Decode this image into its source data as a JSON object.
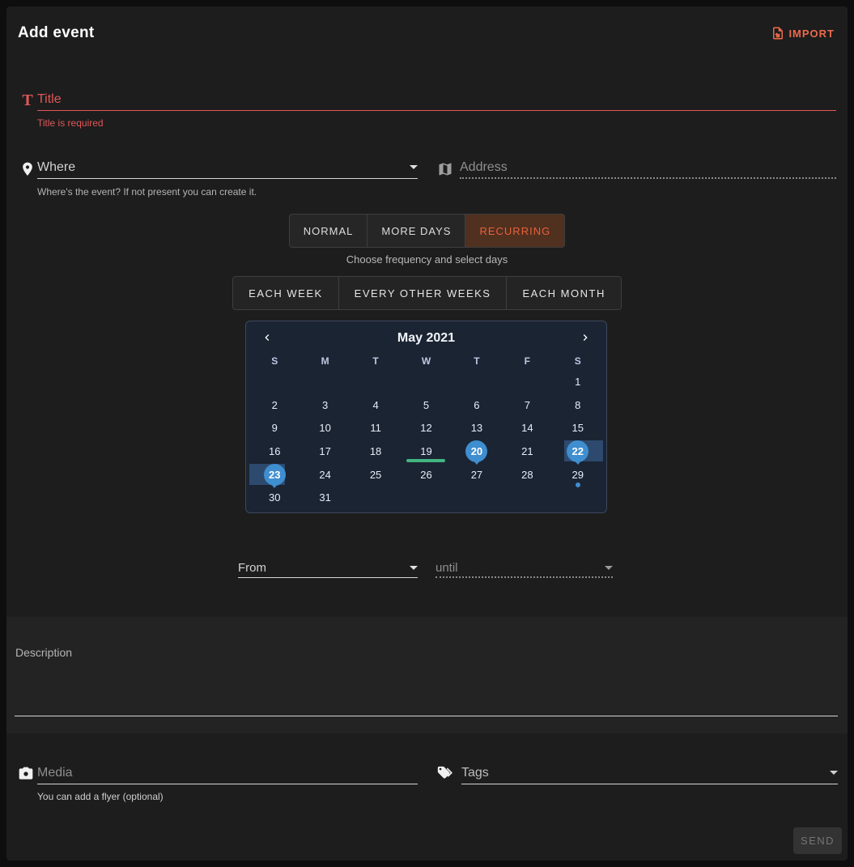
{
  "header": {
    "title": "Add event",
    "import_label": "IMPORT"
  },
  "title_field": {
    "placeholder": "Title",
    "error": "Title is required"
  },
  "where_field": {
    "placeholder": "Where",
    "helper": "Where's the event? If not present you can create it."
  },
  "address_field": {
    "placeholder": "Address"
  },
  "mode_tabs": [
    {
      "label": "NORMAL",
      "active": false
    },
    {
      "label": "MORE DAYS",
      "active": false
    },
    {
      "label": "RECURRING",
      "active": true
    }
  ],
  "frequency": {
    "hint": "Choose frequency and select days",
    "options": [
      "EACH WEEK",
      "EVERY OTHER WEEKS",
      "EACH MONTH"
    ]
  },
  "calendar": {
    "month_label": "May 2021",
    "weekdays": [
      "S",
      "M",
      "T",
      "W",
      "T",
      "F",
      "S"
    ],
    "weeks": [
      [
        "",
        "",
        "",
        "",
        "",
        "",
        "1"
      ],
      [
        "2",
        "3",
        "4",
        "5",
        "6",
        "7",
        "8"
      ],
      [
        "9",
        "10",
        "11",
        "12",
        "13",
        "14",
        "15"
      ],
      [
        "16",
        "17",
        "18",
        "19",
        "20",
        "21",
        "22"
      ],
      [
        "23",
        "24",
        "25",
        "26",
        "27",
        "28",
        "29"
      ],
      [
        "30",
        "31",
        "",
        "",
        "",
        "",
        ""
      ]
    ],
    "selected_days": [
      "20",
      "22",
      "23"
    ],
    "underlined_day": "19",
    "dot_day": "29",
    "band_right_after_day": "22",
    "band_left_before_day": "23"
  },
  "time_fields": {
    "from_label": "From",
    "until_placeholder": "until"
  },
  "description_field": {
    "label": "Description"
  },
  "media_field": {
    "placeholder": "Media",
    "helper": "You can add a flyer (optional)"
  },
  "tags_field": {
    "placeholder": "Tags"
  },
  "send_button": {
    "label": "SEND"
  },
  "theme": {
    "accent_orange": "#ec6a4a",
    "error_red": "#e25757",
    "selected_blue": "#3e8ed0",
    "range_band_blue": "#2d4a6e",
    "today_green": "#43b581",
    "card_bg": "#1d1d1d",
    "page_bg": "#0e0e0e",
    "calendar_bg": "#1b2433"
  }
}
